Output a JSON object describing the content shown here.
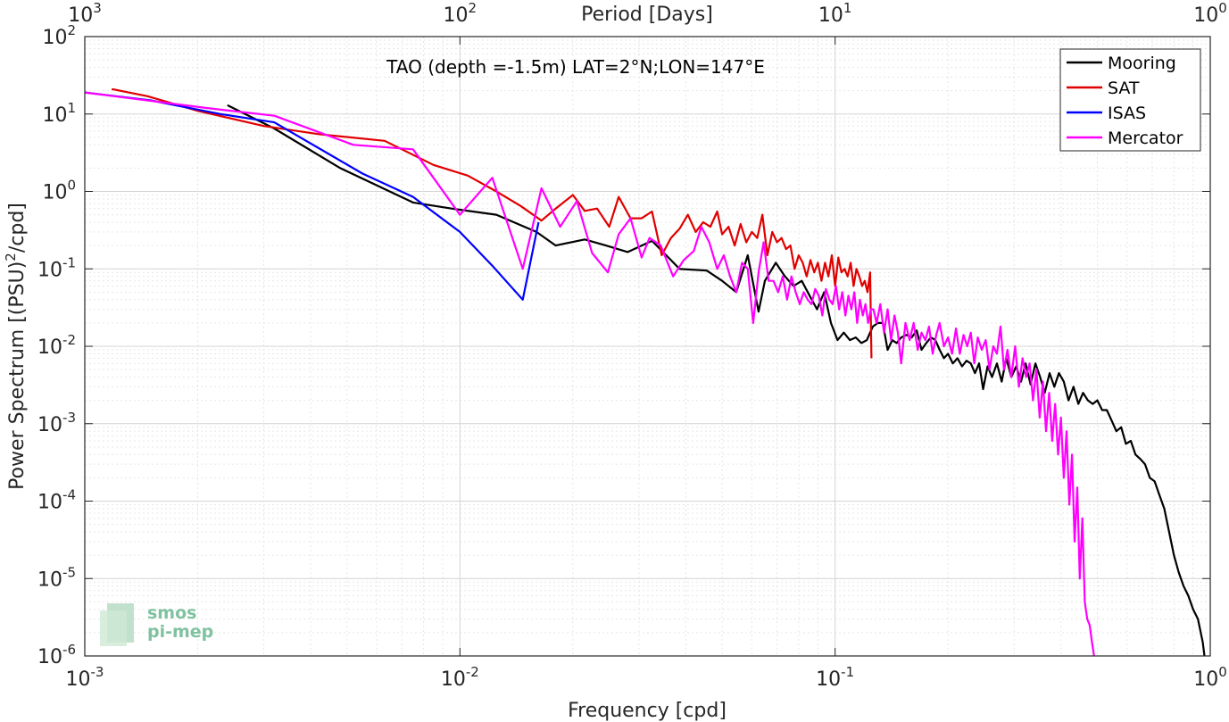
{
  "chart_data": {
    "type": "line",
    "title": "TAO (depth =-1.5m) LAT=2°N;LON=147°E",
    "xlabel": "Frequency [cpd]",
    "ylabel": "Power Spectrum [(PSU)²/cpd]",
    "top_xlabel": "Period [Days]",
    "xscale": "log",
    "yscale": "log",
    "xlim": [
      0.001,
      1
    ],
    "ylim": [
      1e-06,
      100
    ],
    "grid": true,
    "legend_position": "top-right",
    "x_ticks": [
      {
        "value": 0.001,
        "base": "10",
        "exp": "-3"
      },
      {
        "value": 0.01,
        "base": "10",
        "exp": "-2"
      },
      {
        "value": 0.1,
        "base": "10",
        "exp": "-1"
      },
      {
        "value": 1,
        "base": "10",
        "exp": "0"
      }
    ],
    "top_ticks": [
      {
        "value": 0.001,
        "base": "10",
        "exp": "3"
      },
      {
        "value": 0.01,
        "base": "10",
        "exp": "2"
      },
      {
        "value": 0.1,
        "base": "10",
        "exp": "1"
      },
      {
        "value": 1,
        "base": "10",
        "exp": "0"
      }
    ],
    "y_ticks": [
      {
        "value": 100,
        "base": "10",
        "exp": "2"
      },
      {
        "value": 10,
        "base": "10",
        "exp": "1"
      },
      {
        "value": 1,
        "base": "10",
        "exp": "0"
      },
      {
        "value": 0.1,
        "base": "10",
        "exp": "-1"
      },
      {
        "value": 0.01,
        "base": "10",
        "exp": "-2"
      },
      {
        "value": 0.001,
        "base": "10",
        "exp": "-3"
      },
      {
        "value": 0.0001,
        "base": "10",
        "exp": "-4"
      },
      {
        "value": 1e-05,
        "base": "10",
        "exp": "-5"
      },
      {
        "value": 1e-06,
        "base": "10",
        "exp": "-6"
      }
    ],
    "series": [
      {
        "name": "Mooring",
        "color": "#000000",
        "x": [
          0.0024,
          0.0032,
          0.0048,
          0.0075,
          0.0095,
          0.0125,
          0.016,
          0.018,
          0.0215,
          0.0245,
          0.028,
          0.0325,
          0.0365,
          0.0385,
          0.0455,
          0.05,
          0.0545,
          0.0585,
          0.0625,
          0.065,
          0.0695,
          0.0735,
          0.0775,
          0.0815,
          0.0855,
          0.0895,
          0.0935,
          0.0975,
          0.1015,
          0.1055,
          0.1095,
          0.1135,
          0.1175,
          0.1215,
          0.126,
          0.13,
          0.134,
          0.138,
          0.142,
          0.146,
          0.15,
          0.155,
          0.16,
          0.165,
          0.17,
          0.175,
          0.18,
          0.185,
          0.19,
          0.195,
          0.2,
          0.206,
          0.212,
          0.218,
          0.224,
          0.23,
          0.236,
          0.242,
          0.248,
          0.255,
          0.262,
          0.27,
          0.278,
          0.286,
          0.295,
          0.304,
          0.313,
          0.322,
          0.332,
          0.342,
          0.352,
          0.362,
          0.373,
          0.384,
          0.395,
          0.407,
          0.419,
          0.432,
          0.445,
          0.458,
          0.472,
          0.486,
          0.5,
          0.515,
          0.53,
          0.546,
          0.562,
          0.579,
          0.596,
          0.614,
          0.632,
          0.651,
          0.67,
          0.69,
          0.711,
          0.732,
          0.754,
          0.777,
          0.8,
          0.824,
          0.849,
          0.874,
          0.9,
          0.927,
          0.955,
          0.965
        ],
        "values": [
          13,
          6.5,
          2.0,
          0.72,
          0.6,
          0.5,
          0.3,
          0.2,
          0.24,
          0.2,
          0.165,
          0.23,
          0.13,
          0.1,
          0.095,
          0.07,
          0.05,
          0.15,
          0.028,
          0.07,
          0.12,
          0.08,
          0.06,
          0.07,
          0.045,
          0.03,
          0.05,
          0.02,
          0.012,
          0.015,
          0.012,
          0.013,
          0.011,
          0.012,
          0.018,
          0.02,
          0.02,
          0.009,
          0.012,
          0.011,
          0.013,
          0.014,
          0.013,
          0.016,
          0.009,
          0.011,
          0.013,
          0.012,
          0.009,
          0.007,
          0.008,
          0.006,
          0.007,
          0.0055,
          0.0065,
          0.006,
          0.0045,
          0.006,
          0.0028,
          0.0055,
          0.004,
          0.006,
          0.0035,
          0.007,
          0.004,
          0.0055,
          0.0035,
          0.006,
          0.0032,
          0.006,
          0.004,
          0.0025,
          0.0045,
          0.003,
          0.0045,
          0.0035,
          0.002,
          0.003,
          0.0018,
          0.0025,
          0.002,
          0.0018,
          0.002,
          0.0015,
          0.0015,
          0.0011,
          0.0008,
          0.0009,
          0.00055,
          0.0006,
          0.0004,
          0.00035,
          0.0003,
          0.0002,
          0.00018,
          0.00012,
          8e-05,
          4e-05,
          2e-05,
          1.2e-05,
          8e-06,
          6e-06,
          4e-06,
          3e-06,
          1.5e-06,
          1e-06
        ]
      },
      {
        "name": "SAT",
        "color": "#e00000",
        "x": [
          0.00118,
          0.00147,
          0.002,
          0.003,
          0.0042,
          0.0063,
          0.0085,
          0.0105,
          0.0125,
          0.0145,
          0.0165,
          0.018,
          0.02,
          0.0215,
          0.0232,
          0.025,
          0.0265,
          0.0285,
          0.0305,
          0.0325,
          0.0345,
          0.0365,
          0.0385,
          0.0405,
          0.0425,
          0.0445,
          0.0465,
          0.0485,
          0.05,
          0.052,
          0.054,
          0.056,
          0.058,
          0.06,
          0.062,
          0.064,
          0.066,
          0.068,
          0.07,
          0.072,
          0.074,
          0.076,
          0.078,
          0.08,
          0.082,
          0.084,
          0.086,
          0.088,
          0.09,
          0.092,
          0.094,
          0.096,
          0.098,
          0.1,
          0.102,
          0.104,
          0.106,
          0.108,
          0.11,
          0.112,
          0.114,
          0.116,
          0.118,
          0.12,
          0.122,
          0.124,
          0.125
        ],
        "values": [
          21,
          17,
          11,
          7,
          5.5,
          4.5,
          2.2,
          1.6,
          1.0,
          0.65,
          0.42,
          0.6,
          0.9,
          0.56,
          0.6,
          0.35,
          0.85,
          0.45,
          0.45,
          0.55,
          0.15,
          0.25,
          0.33,
          0.5,
          0.3,
          0.4,
          0.35,
          0.55,
          0.28,
          0.35,
          0.2,
          0.38,
          0.22,
          0.3,
          0.25,
          0.5,
          0.15,
          0.3,
          0.22,
          0.25,
          0.18,
          0.2,
          0.1,
          0.15,
          0.12,
          0.08,
          0.13,
          0.09,
          0.12,
          0.07,
          0.12,
          0.08,
          0.15,
          0.06,
          0.14,
          0.09,
          0.1,
          0.08,
          0.12,
          0.06,
          0.1,
          0.08,
          0.06,
          0.07,
          0.05,
          0.09,
          0.007
        ]
      },
      {
        "name": "ISAS",
        "color": "#0000ff",
        "x": [
          0.001,
          0.0015,
          0.0023,
          0.0032,
          0.0055,
          0.0075,
          0.01,
          0.0122,
          0.0147,
          0.0162
        ],
        "values": [
          19,
          15,
          10,
          7.8,
          1.7,
          0.85,
          0.3,
          0.11,
          0.04,
          0.4
        ]
      },
      {
        "name": "Mercator",
        "color": "#ff00ff",
        "x": [
          0.001,
          0.0021,
          0.0032,
          0.0052,
          0.0075,
          0.01,
          0.0122,
          0.0147,
          0.0165,
          0.0185,
          0.0205,
          0.0225,
          0.0248,
          0.0265,
          0.0285,
          0.0305,
          0.032,
          0.0343,
          0.037,
          0.0395,
          0.042,
          0.044,
          0.0462,
          0.0485,
          0.0505,
          0.0525,
          0.0545,
          0.0565,
          0.0585,
          0.0605,
          0.0625,
          0.0645,
          0.0665,
          0.0685,
          0.0705,
          0.0725,
          0.0745,
          0.0765,
          0.0785,
          0.0805,
          0.0825,
          0.0845,
          0.0865,
          0.0885,
          0.0905,
          0.0925,
          0.0945,
          0.0965,
          0.0985,
          0.1005,
          0.1025,
          0.1045,
          0.1065,
          0.1085,
          0.1105,
          0.1125,
          0.1145,
          0.1165,
          0.1185,
          0.1205,
          0.1225,
          0.1245,
          0.1265,
          0.129,
          0.132,
          0.135,
          0.138,
          0.141,
          0.144,
          0.147,
          0.15,
          0.154,
          0.158,
          0.162,
          0.166,
          0.17,
          0.174,
          0.178,
          0.182,
          0.186,
          0.19,
          0.195,
          0.2,
          0.205,
          0.21,
          0.215,
          0.22,
          0.225,
          0.23,
          0.235,
          0.24,
          0.246,
          0.252,
          0.258,
          0.264,
          0.27,
          0.276,
          0.282,
          0.288,
          0.295,
          0.302,
          0.309,
          0.316,
          0.323,
          0.33,
          0.337,
          0.344,
          0.351,
          0.358,
          0.365,
          0.372,
          0.379,
          0.386,
          0.393,
          0.4,
          0.407,
          0.414,
          0.421,
          0.428,
          0.435,
          0.442,
          0.449,
          0.456,
          0.463,
          0.47,
          0.477,
          0.484,
          0.49
        ],
        "values": [
          19,
          12,
          9.5,
          4.0,
          3.5,
          0.5,
          1.5,
          0.1,
          1.1,
          0.35,
          0.75,
          0.16,
          0.09,
          0.28,
          0.45,
          0.14,
          0.25,
          0.2,
          0.08,
          0.13,
          0.17,
          0.35,
          0.22,
          0.1,
          0.15,
          0.08,
          0.05,
          0.12,
          0.1,
          0.02,
          0.09,
          0.22,
          0.07,
          0.07,
          0.05,
          0.08,
          0.04,
          0.08,
          0.05,
          0.035,
          0.05,
          0.04,
          0.035,
          0.055,
          0.045,
          0.025,
          0.055,
          0.04,
          0.035,
          0.06,
          0.03,
          0.05,
          0.025,
          0.045,
          0.03,
          0.05,
          0.02,
          0.04,
          0.025,
          0.035,
          0.02,
          0.03,
          0.03,
          0.02,
          0.035,
          0.015,
          0.03,
          0.012,
          0.025,
          0.015,
          0.006,
          0.02,
          0.012,
          0.02,
          0.009,
          0.015,
          0.012,
          0.018,
          0.008,
          0.014,
          0.02,
          0.01,
          0.013,
          0.008,
          0.017,
          0.008,
          0.014,
          0.01,
          0.015,
          0.006,
          0.013,
          0.009,
          0.012,
          0.005,
          0.01,
          0.008,
          0.018,
          0.005,
          0.009,
          0.004,
          0.01,
          0.003,
          0.007,
          0.004,
          0.006,
          0.002,
          0.005,
          0.0012,
          0.0035,
          0.0008,
          0.0025,
          0.0006,
          0.0018,
          0.0004,
          0.0012,
          0.0002,
          0.0008,
          9e-05,
          0.0004,
          3e-05,
          0.00015,
          1e-05,
          6e-05,
          5e-06,
          3e-06,
          2.5e-06,
          1.5e-06,
          1e-06
        ]
      }
    ]
  },
  "logo": {
    "line1": "smos",
    "line2": "pi-mep"
  }
}
